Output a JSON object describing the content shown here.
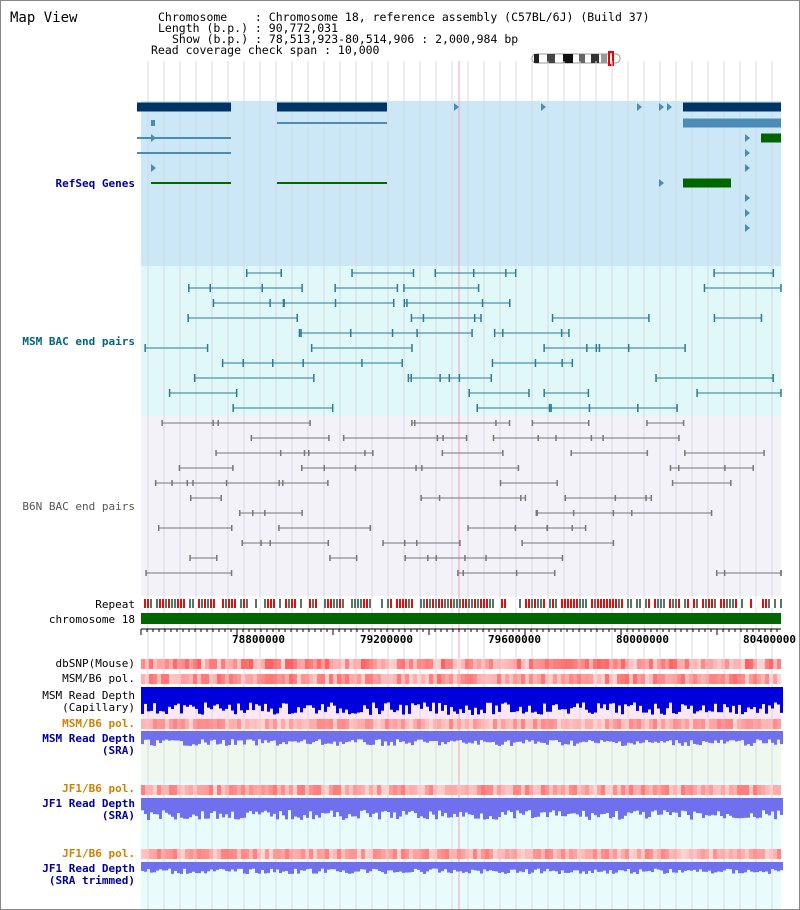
{
  "title": "Map View",
  "header": {
    "chromosome": "Chromosome    : Chromosome 18, reference assembly (C57BL/6J) (Build 37)",
    "length": "Length (b.p.) : 90,772,031",
    "show": "Show (b.p.) : 78,513,923-80,514,906 : 2,000,984 bp",
    "coverage": "Read coverage check span : 10,000"
  },
  "tracks": {
    "refseq": "RefSeq Genes",
    "msm_bac": "MSM BAC end pairs",
    "b6n_bac": "B6N BAC end pairs",
    "repeat": "Repeat",
    "chromosome": "chromosome 18",
    "dbsnp": "dbSNP(Mouse)",
    "msm_b6_pol_1": "MSM/B6 pol.",
    "msm_depth_cap_1": "MSM Read Depth",
    "msm_depth_cap_2": "(Capillary)",
    "msm_b6_pol_2": "MSM/B6 pol.",
    "msm_depth_sra_1": "MSM Read Depth",
    "msm_depth_sra_2": "(SRA)",
    "jf1_pol_1": "JF1/B6 pol.",
    "jf1_depth_sra_1": "JF1 Read Depth",
    "jf1_depth_sra_2": "(SRA)",
    "jf1_pol_2": "JF1/B6 pol.",
    "jf1_depth_trim_1": "JF1 Read Depth",
    "jf1_depth_trim_2": "(SRA trimmed)"
  },
  "axis_ticks": [
    "78800000",
    "79200000",
    "79600000",
    "80000000",
    "80400000"
  ],
  "colors": {
    "refseq_bg": "#cce8f6",
    "msm_bg": "#e0f8f8",
    "b6n_bg": "#f2f2f8",
    "gene_dark": "#003366",
    "gene_mid": "#4a8cb5",
    "gene_green": "#006600",
    "msm_line": "#2a7a9a",
    "b6n_line": "#777777",
    "chrom_green": "#006600",
    "depth_blue": "#0000dd",
    "depth_light": "#7070ee",
    "label_blue": "#000099",
    "label_teal": "#006680",
    "label_orange": "#d08000"
  }
}
